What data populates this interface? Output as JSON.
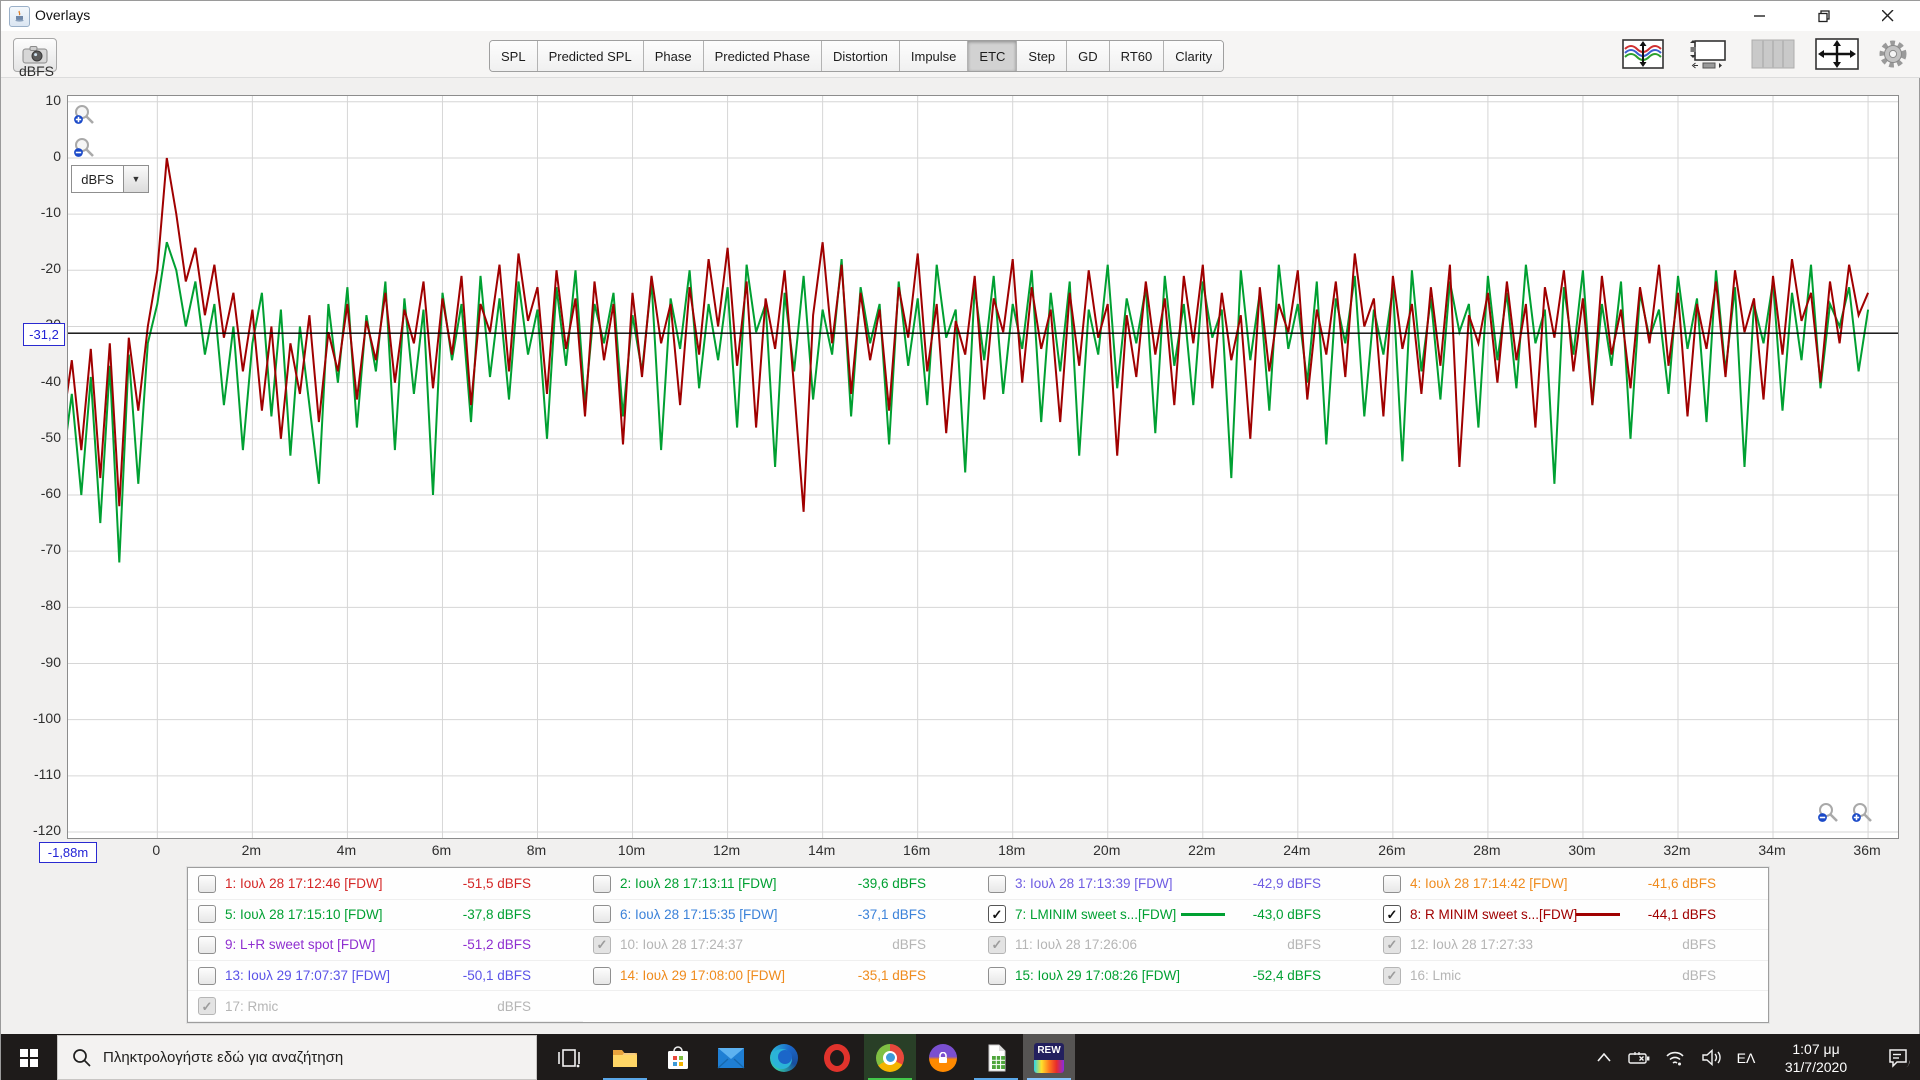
{
  "window": {
    "title": "Overlays",
    "controls": {
      "minimize": "minimize",
      "restore": "restore",
      "close": "close"
    }
  },
  "toolbar": {
    "capture_icon": "camera-icon",
    "tabs": [
      {
        "label": "SPL",
        "selected": false
      },
      {
        "label": "Predicted SPL",
        "selected": false
      },
      {
        "label": "Phase",
        "selected": false
      },
      {
        "label": "Predicted Phase",
        "selected": false
      },
      {
        "label": "Distortion",
        "selected": false
      },
      {
        "label": "Impulse",
        "selected": false
      },
      {
        "label": "ETC",
        "selected": true
      },
      {
        "label": "Step",
        "selected": false
      },
      {
        "label": "GD",
        "selected": false
      },
      {
        "label": "RT60",
        "selected": false
      },
      {
        "label": "Clarity",
        "selected": false
      }
    ],
    "right_icons": [
      "trace-offset-icon",
      "thumbnail-plot-icon",
      "column-grid-icon",
      "pan-zoom-icon",
      "settings-gear-icon"
    ]
  },
  "chart": {
    "axis_unit_label": "dBFS",
    "unit_dropdown_value": "dBFS",
    "cursor_level_label": "-31,2",
    "cursor_time_label": "-1,88m",
    "zoom_icons": [
      "zoom-in-icon",
      "zoom-out-icon"
    ]
  },
  "chart_data": {
    "type": "line",
    "title": "",
    "xlabel": "",
    "ylabel": "dBFS",
    "x_unit_suffix": "m",
    "xlim": [
      -1.88,
      36.63
    ],
    "ylim": [
      -120,
      10
    ],
    "x_tick_values": [
      0,
      2,
      4,
      6,
      8,
      10,
      12,
      14,
      16,
      18,
      20,
      22,
      24,
      26,
      28,
      30,
      32,
      34,
      36
    ],
    "y_tick_values": [
      10,
      0,
      -10,
      -20,
      -30,
      -40,
      -50,
      -60,
      -70,
      -80,
      -90,
      -100,
      -110,
      -120
    ],
    "grid": true,
    "legend_position": "bottom",
    "cursor": {
      "level_dB": -31.2,
      "time_label": "-1,88m"
    },
    "series": [
      {
        "name": "7: LMINIM sweet s...[FDW]",
        "color": "#00a032",
        "x_start": -2.0,
        "x_step": 0.2,
        "values": [
          -55,
          -42,
          -60,
          -39,
          -65,
          -37,
          -72,
          -35,
          -58,
          -33,
          -26,
          -15,
          -20,
          -30,
          -22,
          -35,
          -26,
          -44,
          -30,
          -52,
          -33,
          -24,
          -46,
          -27,
          -53,
          -30,
          -44,
          -58,
          -26,
          -40,
          -23,
          -48,
          -28,
          -38,
          -22,
          -52,
          -25,
          -42,
          -27,
          -60,
          -24,
          -36,
          -26,
          -47,
          -21,
          -39,
          -25,
          -43,
          -22,
          -35,
          -27,
          -50,
          -23,
          -37,
          -20,
          -44,
          -26,
          -33,
          -24,
          -46,
          -28,
          -38,
          -22,
          -52,
          -25,
          -34,
          -20,
          -41,
          -26,
          -36,
          -23,
          -48,
          -19,
          -31,
          -26,
          -55,
          -24,
          -38,
          -21,
          -43,
          -27,
          -35,
          -18,
          -46,
          -23,
          -33,
          -26,
          -51,
          -22,
          -37,
          -25,
          -44,
          -19,
          -32,
          -27,
          -56,
          -23,
          -36,
          -21,
          -42,
          -26,
          -34,
          -20,
          -47,
          -24,
          -38,
          -22,
          -53,
          -27,
          -35,
          -19,
          -41,
          -25,
          -33,
          -23,
          -49,
          -21,
          -37,
          -26,
          -44,
          -22,
          -32,
          -27,
          -57,
          -20,
          -36,
          -24,
          -45,
          -19,
          -34,
          -26,
          -40,
          -22,
          -51,
          -25,
          -33,
          -21,
          -46,
          -27,
          -35,
          -23,
          -54,
          -20,
          -38,
          -25,
          -43,
          -22,
          -31,
          -26,
          -48,
          -21,
          -36,
          -24,
          -41,
          -19,
          -33,
          -27,
          -58,
          -23,
          -35,
          -20,
          -44,
          -26,
          -37,
          -22,
          -50,
          -24,
          -32,
          -27,
          -42,
          -21,
          -34,
          -25,
          -47,
          -20,
          -38,
          -23,
          -55,
          -26,
          -33,
          -22,
          -45,
          -24,
          -36,
          -19,
          -41,
          -26,
          -30,
          -23,
          -38,
          -27
        ]
      },
      {
        "name": "8: R MINIM sweet s...[FDW]",
        "color": "#a00000",
        "x_start": -2.0,
        "x_step": 0.2,
        "values": [
          -48,
          -36,
          -52,
          -34,
          -57,
          -33,
          -62,
          -32,
          -45,
          -30,
          -20,
          0,
          -10,
          -22,
          -16,
          -28,
          -19,
          -32,
          -24,
          -38,
          -27,
          -45,
          -30,
          -50,
          -33,
          -42,
          -28,
          -47,
          -31,
          -38,
          -26,
          -43,
          -29,
          -36,
          -24,
          -40,
          -27,
          -33,
          -22,
          -41,
          -25,
          -35,
          -21,
          -44,
          -26,
          -31,
          -19,
          -38,
          -17,
          -29,
          -23,
          -42,
          -20,
          -34,
          -25,
          -46,
          -22,
          -36,
          -26,
          -51,
          -24,
          -39,
          -21,
          -33,
          -26,
          -44,
          -23,
          -35,
          -18,
          -30,
          -16,
          -37,
          -22,
          -48,
          -25,
          -34,
          -20,
          -41,
          -63,
          -28,
          -15,
          -33,
          -19,
          -42,
          -24,
          -36,
          -27,
          -45,
          -23,
          -32,
          -17,
          -38,
          -26,
          -49,
          -29,
          -35,
          -21,
          -43,
          -25,
          -31,
          -18,
          -40,
          -23,
          -34,
          -27,
          -47,
          -24,
          -37,
          -20,
          -32,
          -26,
          -53,
          -28,
          -39,
          -22,
          -35,
          -25,
          -44,
          -21,
          -33,
          -19,
          -41,
          -24,
          -36,
          -28,
          -50,
          -23,
          -38,
          -26,
          -31,
          -20,
          -43,
          -27,
          -35,
          -22,
          -39,
          -17,
          -30,
          -25,
          -46,
          -21,
          -34,
          -26,
          -42,
          -23,
          -37,
          -19,
          -55,
          -28,
          -33,
          -24,
          -40,
          -22,
          -36,
          -26,
          -48,
          -23,
          -32,
          -20,
          -38,
          -25,
          -44,
          -21,
          -35,
          -27,
          -41,
          -23,
          -33,
          -19,
          -37,
          -24,
          -46,
          -26,
          -34,
          -22,
          -39,
          -20,
          -31,
          -25,
          -43,
          -21,
          -35,
          -18,
          -29,
          -24,
          -40,
          -22,
          -33,
          -19,
          -28,
          -24
        ]
      }
    ]
  },
  "legend": {
    "entries": [
      {
        "label": "1: Ιουλ 28 17:12:46 [FDW]",
        "value": "-51,5 dBFS",
        "color": "#d42626",
        "state": "unchecked",
        "swatch": false
      },
      {
        "label": "2: Ιουλ 28 17:13:11 [FDW]",
        "value": "-39,6 dBFS",
        "color": "#00a032",
        "state": "unchecked",
        "swatch": false
      },
      {
        "label": "3: Ιουλ 28 17:13:39 [FDW]",
        "value": "-42,9 dBFS",
        "color": "#6e5ce2",
        "state": "unchecked",
        "swatch": false
      },
      {
        "label": "4: Ιουλ 28 17:14:42 [FDW]",
        "value": "-41,6 dBFS",
        "color": "#ef8b1d",
        "state": "unchecked",
        "swatch": false
      },
      {
        "label": "5: Ιουλ 28 17:15:10 [FDW]",
        "value": "-37,8 dBFS",
        "color": "#00a032",
        "state": "unchecked",
        "swatch": false
      },
      {
        "label": "6: Ιουλ 28 17:15:35 [FDW]",
        "value": "-37,1 dBFS",
        "color": "#3b82d9",
        "state": "unchecked",
        "swatch": false
      },
      {
        "label": "7: LMINIM sweet s...[FDW]",
        "value": "-43,0 dBFS",
        "color": "#00a032",
        "state": "checked",
        "swatch": true
      },
      {
        "label": "8: R MINIM sweet s...[FDW]",
        "value": "-44,1 dBFS",
        "color": "#a00000",
        "state": "checked",
        "swatch": true
      },
      {
        "label": "9: L+R sweet spot [FDW]",
        "value": "-51,2 dBFS",
        "color": "#8f2fd0",
        "state": "unchecked",
        "swatch": false
      },
      {
        "label": "10: Ιουλ 28 17:24:37",
        "value": "dBFS",
        "color": "#b5b5b5",
        "state": "checked-disabled",
        "swatch": false
      },
      {
        "label": "11: Ιουλ 28 17:26:06",
        "value": "dBFS",
        "color": "#b5b5b5",
        "state": "checked-disabled",
        "swatch": false
      },
      {
        "label": "12: Ιουλ 28 17:27:33",
        "value": "dBFS",
        "color": "#b5b5b5",
        "state": "checked-disabled",
        "swatch": false
      },
      {
        "label": "13: Ιουλ 29 17:07:37 [FDW]",
        "value": "-50,1 dBFS",
        "color": "#5a52e8",
        "state": "unchecked",
        "swatch": false
      },
      {
        "label": "14: Ιουλ 29 17:08:00 [FDW]",
        "value": "-35,1 dBFS",
        "color": "#ef8b1d",
        "state": "unchecked",
        "swatch": false
      },
      {
        "label": "15: Ιουλ 29 17:08:26 [FDW]",
        "value": "-52,4 dBFS",
        "color": "#00a032",
        "state": "unchecked",
        "swatch": false
      },
      {
        "label": "16: Lmic",
        "value": "dBFS",
        "color": "#b5b5b5",
        "state": "checked-disabled",
        "swatch": false
      },
      {
        "label": "17: Rmic",
        "value": "dBFS",
        "color": "#b5b5b5",
        "state": "checked-disabled",
        "swatch": false
      }
    ]
  },
  "taskbar": {
    "search_placeholder": "Πληκτρολογήστε εδώ για αναζήτηση",
    "apps": [
      "start",
      "task-view",
      "file-explorer",
      "microsoft-store",
      "mail",
      "edge",
      "opera",
      "chrome",
      "opera-private",
      "libreoffice",
      "rew"
    ],
    "running_indicators": {
      "file-explorer": "#5aa7e8",
      "chrome": "#43c94a",
      "libreoffice": "#5aa7e8",
      "rew": "active"
    },
    "tray_icons": [
      "chevron-up-icon",
      "battery-icon",
      "wifi-icon",
      "volume-icon",
      "notification-icon"
    ],
    "language": "ΕΛ",
    "time": "1:07 μμ",
    "date": "31/7/2020"
  }
}
